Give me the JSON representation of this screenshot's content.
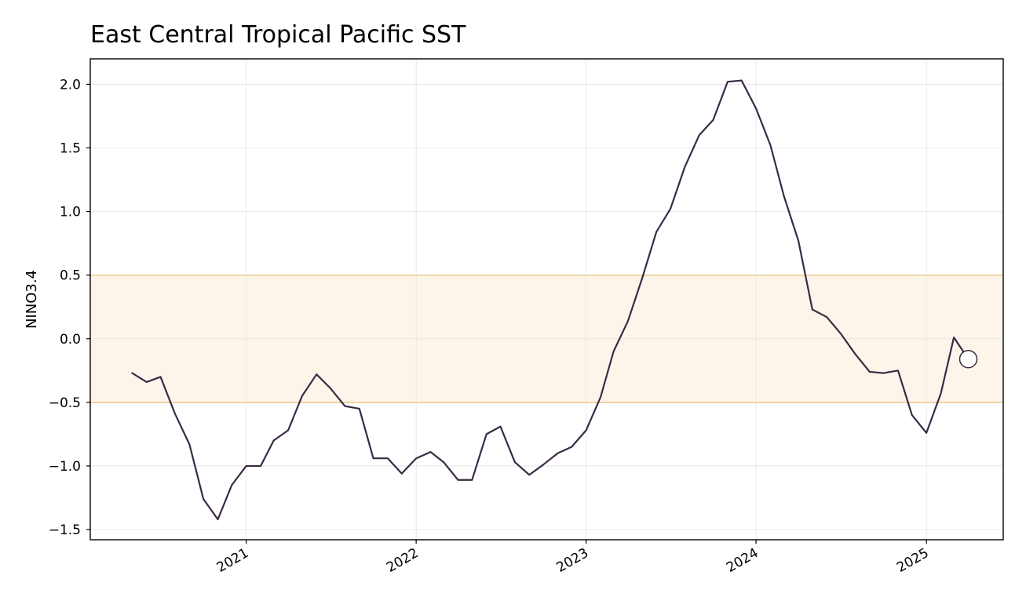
{
  "chart_data": {
    "type": "line",
    "title": "East Central Tropical Pacific SST",
    "xlabel": "",
    "ylabel": "NINO3.4",
    "ylim": [
      -1.58,
      2.2
    ],
    "xlim": [
      "2020-02-01",
      "2025-06-15"
    ],
    "grid": true,
    "legend": "none",
    "y_ticks": [
      -1.5,
      -1.0,
      -0.5,
      0.0,
      0.5,
      1.0,
      1.5,
      2.0
    ],
    "y_tick_labels": [
      "−1.5",
      "−1.0",
      "−0.5",
      "0.0",
      "0.5",
      "1.0",
      "1.5",
      "2.0"
    ],
    "x_ticks": [
      "2021-01-01",
      "2022-01-01",
      "2023-01-01",
      "2024-01-01",
      "2025-01-01"
    ],
    "x_tick_labels": [
      "2021",
      "2022",
      "2023",
      "2024",
      "2025"
    ],
    "neutral_band": {
      "lower": -0.5,
      "upper": 0.5,
      "line_color": "#f5a623",
      "fill_color": "#fef5ea"
    },
    "series": [
      {
        "color": "#3b2a45",
        "x": [
          "2020-05-01",
          "2020-06-01",
          "2020-07-01",
          "2020-08-01",
          "2020-09-01",
          "2020-10-01",
          "2020-11-01",
          "2020-12-01",
          "2021-01-01",
          "2021-02-01",
          "2021-03-01",
          "2021-04-01",
          "2021-05-01",
          "2021-06-01",
          "2021-07-01",
          "2021-08-01",
          "2021-09-01",
          "2021-10-01",
          "2021-11-01",
          "2021-12-01",
          "2022-01-01",
          "2022-02-01",
          "2022-03-01",
          "2022-04-01",
          "2022-05-01",
          "2022-06-01",
          "2022-07-01",
          "2022-08-01",
          "2022-09-01",
          "2022-10-01",
          "2022-11-01",
          "2022-12-01",
          "2023-01-01",
          "2023-02-01",
          "2023-03-01",
          "2023-04-01",
          "2023-05-01",
          "2023-06-01",
          "2023-07-01",
          "2023-08-01",
          "2023-09-01",
          "2023-10-01",
          "2023-11-01",
          "2023-12-01",
          "2024-01-01",
          "2024-02-01",
          "2024-03-01",
          "2024-04-01",
          "2024-05-01",
          "2024-06-01",
          "2024-07-01",
          "2024-08-01",
          "2024-09-01",
          "2024-10-01",
          "2024-11-01",
          "2024-12-01",
          "2025-01-01",
          "2025-02-01",
          "2025-03-01",
          "2025-04-01"
        ],
        "values": [
          -0.27,
          -0.34,
          -0.3,
          -0.59,
          -0.83,
          -1.26,
          -1.42,
          -1.15,
          -1.0,
          -1.0,
          -0.8,
          -0.72,
          -0.45,
          -0.28,
          -0.39,
          -0.53,
          -0.55,
          -0.94,
          -0.94,
          -1.06,
          -0.94,
          -0.89,
          -0.97,
          -1.11,
          -1.11,
          -0.75,
          -0.69,
          -0.97,
          -1.07,
          -0.99,
          -0.9,
          -0.85,
          -0.72,
          -0.46,
          -0.1,
          0.14,
          0.47,
          0.84,
          1.02,
          1.35,
          1.6,
          1.72,
          2.02,
          2.03,
          1.81,
          1.52,
          1.12,
          0.77,
          0.23,
          0.17,
          0.04,
          -0.12,
          -0.26,
          -0.27,
          -0.25,
          -0.6,
          -0.74,
          -0.43,
          0.01,
          -0.16
        ]
      }
    ],
    "highlight_point": {
      "x": "2025-04-01",
      "y": -0.16,
      "marker": "open-circle"
    }
  }
}
